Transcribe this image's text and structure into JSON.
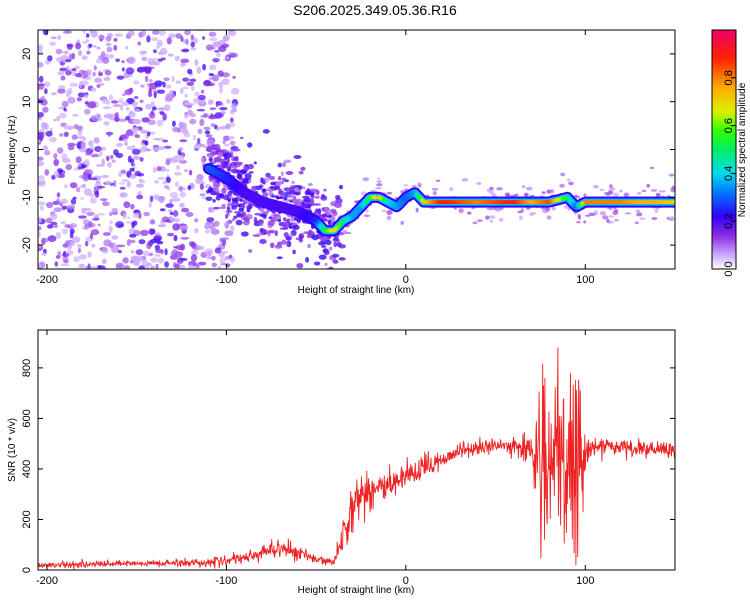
{
  "title": "S206.2025.349.05.36.R16",
  "chart_data": [
    {
      "type": "heatmap",
      "description_id": "spectrogram",
      "xlabel": "Height of straight line (km)",
      "ylabel": "Frequency (Hz)",
      "xlim": [
        -205,
        150
      ],
      "ylim": [
        -25,
        25
      ],
      "xticks": [
        -200,
        -100,
        0,
        100
      ],
      "xtick_labels": [
        "-200",
        "-100",
        "0",
        "100"
      ],
      "yticks": [
        20,
        10,
        0,
        -10,
        -20
      ],
      "ytick_labels": [
        "20",
        "10",
        "0",
        "-10",
        "-20"
      ],
      "colorbar": {
        "label": "Normalized spectral amplitude",
        "range": [
          0,
          1
        ],
        "ticks": [
          0.0,
          0.2,
          0.4,
          0.6,
          0.8
        ],
        "tick_labels": [
          "0.0",
          "0.2",
          "0.4",
          "0.6",
          "0.8"
        ]
      },
      "ridge": {
        "x": [
          -110,
          -100,
          -90,
          -80,
          -70,
          -60,
          -50,
          -45,
          -40,
          -35,
          -30,
          -25,
          -20,
          -15,
          -10,
          -5,
          0,
          5,
          10,
          20,
          30,
          40,
          50,
          60,
          70,
          80,
          90,
          95,
          100,
          110,
          120,
          130,
          140,
          150
        ],
        "freq": [
          -4,
          -6,
          -9,
          -11,
          -12,
          -13,
          -15,
          -17,
          -17,
          -15,
          -14,
          -12,
          -10,
          -10,
          -11,
          -12,
          -10,
          -9,
          -11,
          -11,
          -11,
          -11,
          -11,
          -11,
          -11,
          -11,
          -10,
          -12,
          -11,
          -11,
          -11,
          -11,
          -11,
          -11
        ],
        "amplitude": [
          0.3,
          0.25,
          0.2,
          0.2,
          0.2,
          0.2,
          0.25,
          0.55,
          0.7,
          0.5,
          0.35,
          0.35,
          0.55,
          0.75,
          0.4,
          0.35,
          0.3,
          0.35,
          0.7,
          0.9,
          0.85,
          0.8,
          0.85,
          0.9,
          0.75,
          0.85,
          0.5,
          0.3,
          0.8,
          0.8,
          0.8,
          0.75,
          0.75,
          0.7
        ]
      }
    },
    {
      "type": "line",
      "description_id": "snr",
      "xlabel": "Height of straight line (km)",
      "ylabel": "SNR (10 * v/v)",
      "xlim": [
        -205,
        150
      ],
      "ylim": [
        0,
        950
      ],
      "xticks": [
        -200,
        -100,
        0,
        100
      ],
      "xtick_labels": [
        "-200",
        "-100",
        "0",
        "100"
      ],
      "yticks": [
        0,
        200,
        400,
        600,
        800
      ],
      "ytick_labels": [
        "0",
        "200",
        "400",
        "600",
        "800"
      ],
      "series": [
        {
          "name": "SNR",
          "color": "#ee2222",
          "envelope_x": [
            -205,
            -150,
            -110,
            -90,
            -80,
            -70,
            -60,
            -50,
            -40,
            -35,
            -30,
            -25,
            -20,
            -10,
            0,
            10,
            20,
            30,
            40,
            50,
            60,
            70,
            75,
            80,
            85,
            90,
            95,
            100,
            110,
            120,
            130,
            140,
            150
          ],
          "envelope_mean": [
            20,
            25,
            30,
            45,
            70,
            90,
            70,
            40,
            30,
            150,
            250,
            300,
            320,
            330,
            360,
            400,
            440,
            470,
            485,
            490,
            490,
            480,
            420,
            400,
            410,
            380,
            400,
            480,
            490,
            485,
            480,
            475,
            470
          ],
          "envelope_spread": [
            10,
            12,
            15,
            20,
            30,
            40,
            30,
            15,
            10,
            80,
            90,
            80,
            80,
            70,
            60,
            50,
            35,
            30,
            30,
            25,
            30,
            60,
            250,
            350,
            300,
            350,
            420,
            60,
            30,
            30,
            30,
            30,
            30
          ]
        }
      ]
    }
  ],
  "colors": {
    "line": "#ee2222",
    "axis": "#000000",
    "background": "#ffffff"
  }
}
